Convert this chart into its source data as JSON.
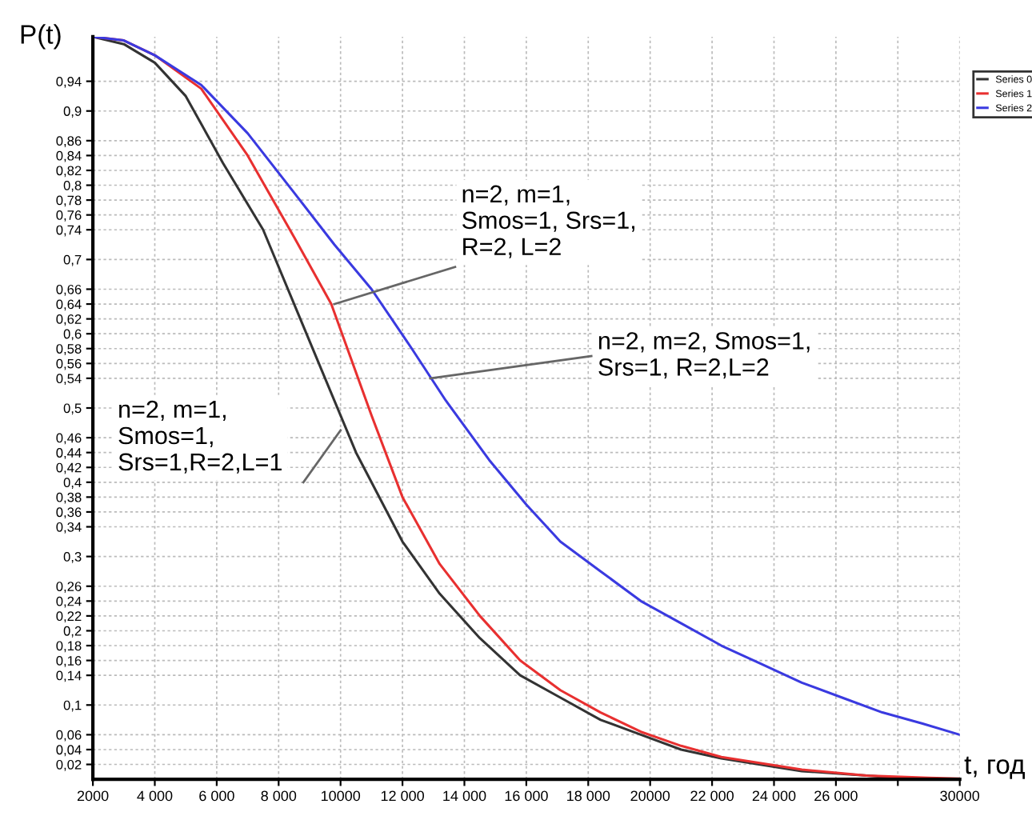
{
  "chart_data": {
    "type": "line",
    "xlabel": "t, год",
    "ylabel": "P(t)",
    "xlim": [
      2000,
      30000
    ],
    "ylim": [
      0,
      1
    ],
    "xticks": [
      {
        "value": 2000,
        "label": "2000"
      },
      {
        "value": 4000,
        "label": "4 000"
      },
      {
        "value": 6000,
        "label": "6 000"
      },
      {
        "value": 8000,
        "label": "8 000"
      },
      {
        "value": 10000,
        "label": "10000"
      },
      {
        "value": 12000,
        "label": "12 000"
      },
      {
        "value": 14000,
        "label": "14 000"
      },
      {
        "value": 16000,
        "label": "16 000"
      },
      {
        "value": 18000,
        "label": "18 000"
      },
      {
        "value": 20000,
        "label": "20000"
      },
      {
        "value": 22000,
        "label": "22 000"
      },
      {
        "value": 24000,
        "label": "24 000"
      },
      {
        "value": 26000,
        "label": "26 000"
      },
      {
        "value": 28000,
        "label": null
      },
      {
        "value": 30000,
        "label": "30000"
      }
    ],
    "yticks": [
      {
        "value": 0.02,
        "label": "0,02"
      },
      {
        "value": 0.04,
        "label": "0,04"
      },
      {
        "value": 0.06,
        "label": "0,06"
      },
      {
        "value": 0.1,
        "label": "0,1"
      },
      {
        "value": 0.14,
        "label": "0,14"
      },
      {
        "value": 0.16,
        "label": "0,16"
      },
      {
        "value": 0.18,
        "label": "0,18"
      },
      {
        "value": 0.2,
        "label": "0,2"
      },
      {
        "value": 0.22,
        "label": "0,22"
      },
      {
        "value": 0.24,
        "label": "0,24"
      },
      {
        "value": 0.26,
        "label": "0,26"
      },
      {
        "value": 0.3,
        "label": "0,3"
      },
      {
        "value": 0.34,
        "label": "0,34"
      },
      {
        "value": 0.36,
        "label": "0,36"
      },
      {
        "value": 0.38,
        "label": "0,38"
      },
      {
        "value": 0.4,
        "label": "0,4"
      },
      {
        "value": 0.42,
        "label": "0,42"
      },
      {
        "value": 0.44,
        "label": "0,44"
      },
      {
        "value": 0.46,
        "label": "0,46"
      },
      {
        "value": 0.5,
        "label": "0,5"
      },
      {
        "value": 0.54,
        "label": "0,54"
      },
      {
        "value": 0.56,
        "label": "0,56"
      },
      {
        "value": 0.58,
        "label": "0,58"
      },
      {
        "value": 0.6,
        "label": "0,6"
      },
      {
        "value": 0.62,
        "label": "0,62"
      },
      {
        "value": 0.64,
        "label": "0,64"
      },
      {
        "value": 0.66,
        "label": "0,66"
      },
      {
        "value": 0.7,
        "label": "0,7"
      },
      {
        "value": 0.74,
        "label": "0,74"
      },
      {
        "value": 0.76,
        "label": "0,76"
      },
      {
        "value": 0.78,
        "label": "0,78"
      },
      {
        "value": 0.8,
        "label": "0,8"
      },
      {
        "value": 0.82,
        "label": "0,82"
      },
      {
        "value": 0.84,
        "label": "0,84"
      },
      {
        "value": 0.86,
        "label": "0,86"
      },
      {
        "value": 0.9,
        "label": "0,9"
      },
      {
        "value": 0.94,
        "label": "0,94"
      }
    ],
    "grid": true,
    "legend": "top right",
    "line_style": "solid",
    "marker": "none",
    "series": [
      {
        "name": "Series 0",
        "color": "#333333",
        "x": [
          2000,
          3000,
          4000,
          5000,
          6200,
          7500,
          8700,
          9400,
          10500,
          12000,
          13200,
          14500,
          15800,
          17100,
          18400,
          19700,
          21000,
          22300,
          24900,
          28000,
          30000
        ],
        "values": [
          1.0,
          0.99,
          0.965,
          0.92,
          0.83,
          0.74,
          0.62,
          0.55,
          0.44,
          0.32,
          0.25,
          0.19,
          0.14,
          0.11,
          0.08,
          0.06,
          0.04,
          0.028,
          0.011,
          0.002,
          0.0
        ]
      },
      {
        "name": "Series 1",
        "color": "#e83030",
        "x": [
          2000,
          3000,
          4000,
          5500,
          7000,
          8500,
          9700,
          11000,
          12000,
          13200,
          14500,
          15800,
          17100,
          18400,
          19700,
          21000,
          22300,
          24900,
          27000,
          29000,
          30000
        ],
        "values": [
          1.0,
          0.995,
          0.975,
          0.93,
          0.84,
          0.73,
          0.64,
          0.49,
          0.38,
          0.29,
          0.22,
          0.16,
          0.12,
          0.09,
          0.064,
          0.045,
          0.03,
          0.013,
          0.005,
          0.002,
          0.001
        ]
      },
      {
        "name": "Series 2",
        "color": "#3a3ae0",
        "x": [
          2000,
          3000,
          4000,
          5500,
          7000,
          8500,
          9800,
          11000,
          12300,
          13400,
          14800,
          16000,
          17100,
          18400,
          19700,
          21000,
          22300,
          23600,
          24900,
          26200,
          27500,
          28800,
          30000
        ],
        "values": [
          1.0,
          0.995,
          0.975,
          0.935,
          0.87,
          0.79,
          0.72,
          0.66,
          0.58,
          0.51,
          0.43,
          0.37,
          0.32,
          0.28,
          0.24,
          0.21,
          0.18,
          0.155,
          0.13,
          0.11,
          0.09,
          0.075,
          0.06
        ]
      }
    ],
    "annotations": [
      {
        "text": "n=2, m=1,\nSmos=1, Srs=1,\nR=2, L=2",
        "x": 9800,
        "y": 0.64
      },
      {
        "text": "n=2, m=2, Smos=1,\nSrs=1, R=2,L=2",
        "x": 12900,
        "y": 0.54
      },
      {
        "text": "n=2, m=1,\nSmos=1,\nSrs=1,R=2,L=1",
        "x": 10000,
        "y": 0.47
      }
    ]
  }
}
